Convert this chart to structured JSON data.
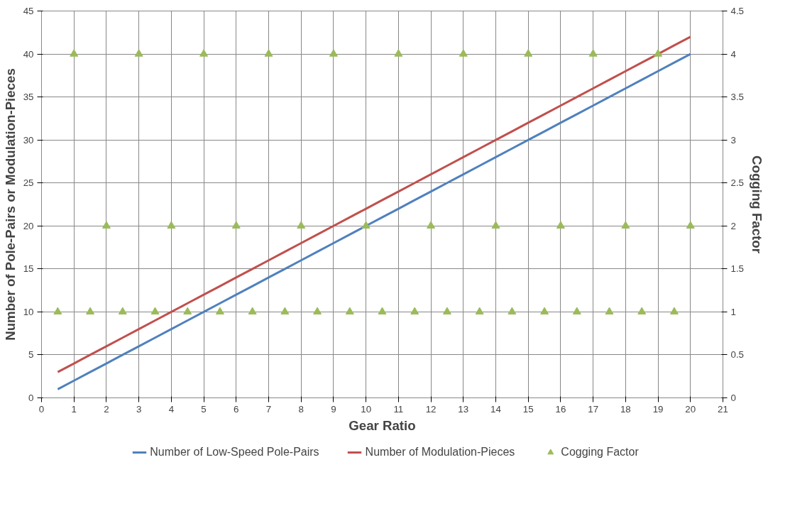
{
  "chart_data": {
    "type": "line",
    "xlabel": "Gear Ratio",
    "ylabel": "Number of Pole-Pairs or Modulation-Pieces",
    "y2label": "Cogging Factor",
    "x": [
      0.5,
      1,
      1.5,
      2,
      2.5,
      3,
      3.5,
      4,
      4.5,
      5,
      5.5,
      6,
      6.5,
      7,
      7.5,
      8,
      8.5,
      9,
      9.5,
      10,
      10.5,
      11,
      11.5,
      12,
      12.5,
      13,
      13.5,
      14,
      14.5,
      15,
      15.5,
      16,
      16.5,
      17,
      17.5,
      18,
      18.5,
      19,
      19.5,
      20
    ],
    "series": [
      {
        "name": "Number of Low-Speed Pole-Pairs",
        "color": "#4f81bd",
        "values": [
          1,
          2,
          3,
          4,
          5,
          6,
          7,
          8,
          9,
          10,
          11,
          12,
          13,
          14,
          15,
          16,
          17,
          18,
          19,
          20,
          21,
          22,
          23,
          24,
          25,
          26,
          27,
          28,
          29,
          30,
          31,
          32,
          33,
          34,
          35,
          36,
          37,
          38,
          39,
          40
        ]
      },
      {
        "name": "Number of Modulation-Pieces",
        "color": "#c0504d",
        "values": [
          3,
          4,
          5,
          6,
          7,
          8,
          9,
          10,
          11,
          12,
          13,
          14,
          15,
          16,
          17,
          18,
          19,
          20,
          21,
          22,
          23,
          24,
          25,
          26,
          27,
          28,
          29,
          30,
          31,
          32,
          33,
          34,
          35,
          36,
          37,
          38,
          39,
          40,
          41,
          42
        ]
      },
      {
        "name": "Cogging Factor",
        "color": "#9bbb59",
        "type": "scatter",
        "axis": "y2",
        "marker": "triangle",
        "values": [
          1,
          4,
          1,
          2,
          1,
          4,
          1,
          2,
          1,
          4,
          1,
          2,
          1,
          4,
          1,
          2,
          1,
          4,
          1,
          2,
          1,
          4,
          1,
          2,
          1,
          4,
          1,
          2,
          1,
          4,
          1,
          2,
          1,
          4,
          1,
          2,
          1,
          4,
          1,
          2
        ]
      }
    ],
    "xlim": [
      0,
      21
    ],
    "xticks": [
      0,
      1,
      2,
      3,
      4,
      5,
      6,
      7,
      8,
      9,
      10,
      11,
      12,
      13,
      14,
      15,
      16,
      17,
      18,
      19,
      20,
      21
    ],
    "ylim": [
      0,
      45
    ],
    "yticks": [
      0,
      5,
      10,
      15,
      20,
      25,
      30,
      35,
      40,
      45
    ],
    "y2lim": [
      0,
      4.5
    ],
    "y2ticks": [
      0,
      0.5,
      1,
      1.5,
      2,
      2.5,
      3,
      3.5,
      4,
      4.5
    ],
    "grid": true,
    "legend": "bottom",
    "line_style": "solid"
  }
}
